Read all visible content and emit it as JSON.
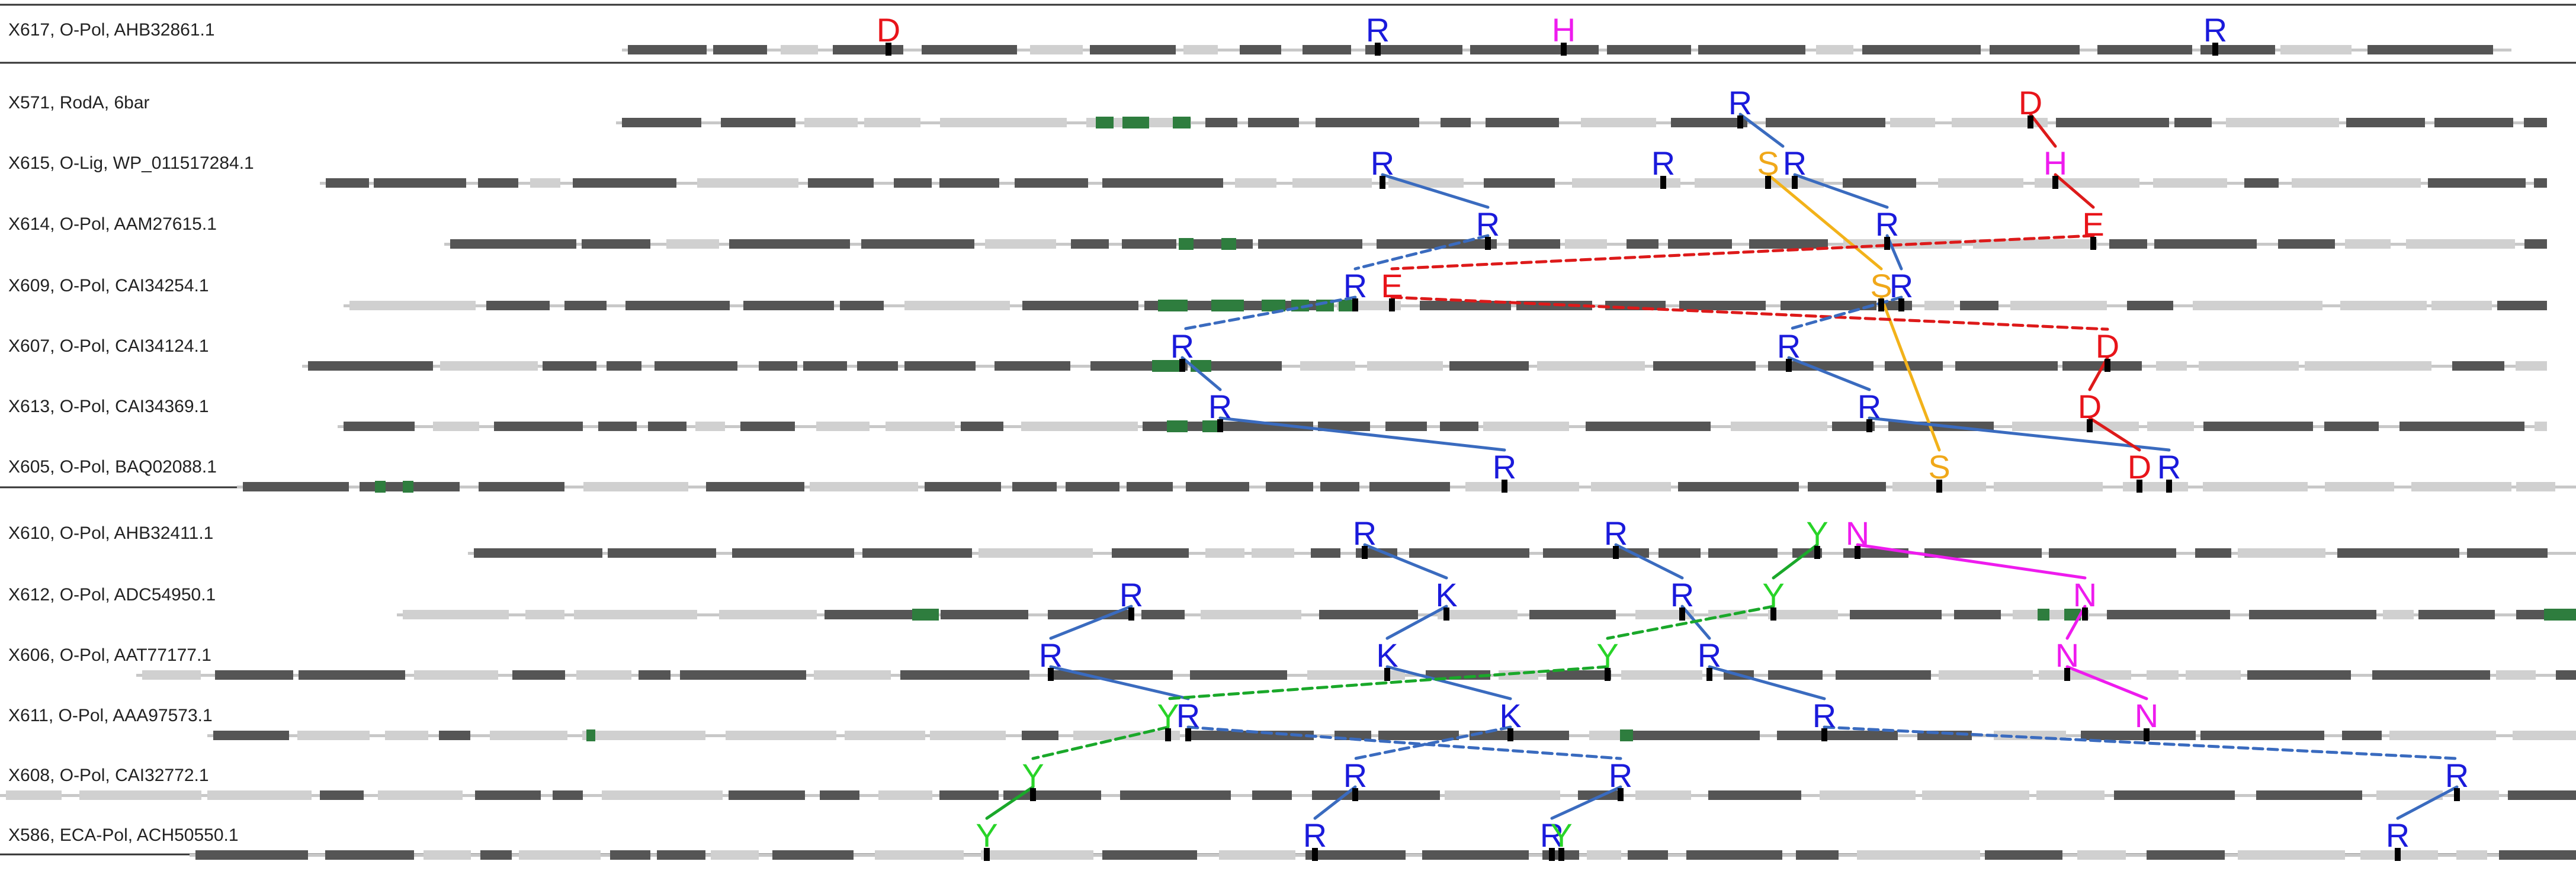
{
  "colors": {
    "R": "#1a1adb",
    "K": "#1a1adb",
    "D": "#e8141a",
    "E": "#e8141a",
    "H": "#ee1bee",
    "N": "#ee1bee",
    "S": "#f0a81a",
    "Y": "#28d428",
    "link_blue": "#3a6bbf",
    "link_red": "#dd1a1a",
    "link_orange": "#f2b21a",
    "link_green": "#1aa82a",
    "link_magenta": "#ee1bee",
    "track_gray": "#c8c8c8",
    "block_dark": "#555555",
    "block_light": "#d0d0d0",
    "block_green": "#2e7d3e",
    "divider": "#333333"
  },
  "rows": [
    {
      "label": "X617, O-Pol, AHB32861.1"
    },
    {
      "label": "X571, RodA, 6bar"
    },
    {
      "label": "X615, O-Lig, WP_011517284.1"
    },
    {
      "label": "X614, O-Pol, AAM27615.1"
    },
    {
      "label": "X609, O-Pol, CAI34254.1"
    },
    {
      "label": "X607, O-Pol, CAI34124.1"
    },
    {
      "label": "X613, O-Pol, CAI34369.1"
    },
    {
      "label": "X605, O-Pol, BAQ02088.1"
    },
    {
      "label": "X610, O-Pol, AHB32411.1"
    },
    {
      "label": "X612, O-Pol, ADC54950.1"
    },
    {
      "label": "X606, O-Pol, AAT77177.1"
    },
    {
      "label": "X611, O-Pol, AAA97573.1"
    },
    {
      "label": "X608, O-Pol, CAI32772.1"
    },
    {
      "label": "X586, ECA-Pol, ACH50550.1"
    }
  ]
}
